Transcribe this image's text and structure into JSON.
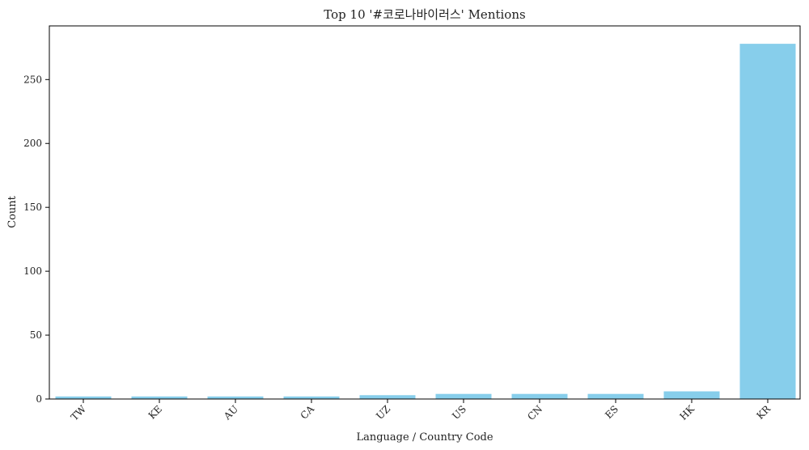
{
  "chart_data": {
    "type": "bar",
    "title": "Top 10 '#코로나바이러스' Mentions",
    "xlabel": "Language / Country Code",
    "ylabel": "Count",
    "categories": [
      "TW",
      "KE",
      "AU",
      "CA",
      "UZ",
      "US",
      "CN",
      "ES",
      "HK",
      "KR"
    ],
    "values": [
      2,
      2,
      2,
      2,
      3,
      4,
      4,
      4,
      6,
      278
    ],
    "ylim": [
      0,
      292
    ],
    "yticks": [
      0,
      50,
      100,
      150,
      200,
      250
    ],
    "bar_color": "#87CEEB",
    "grid": false,
    "legend": "none"
  }
}
